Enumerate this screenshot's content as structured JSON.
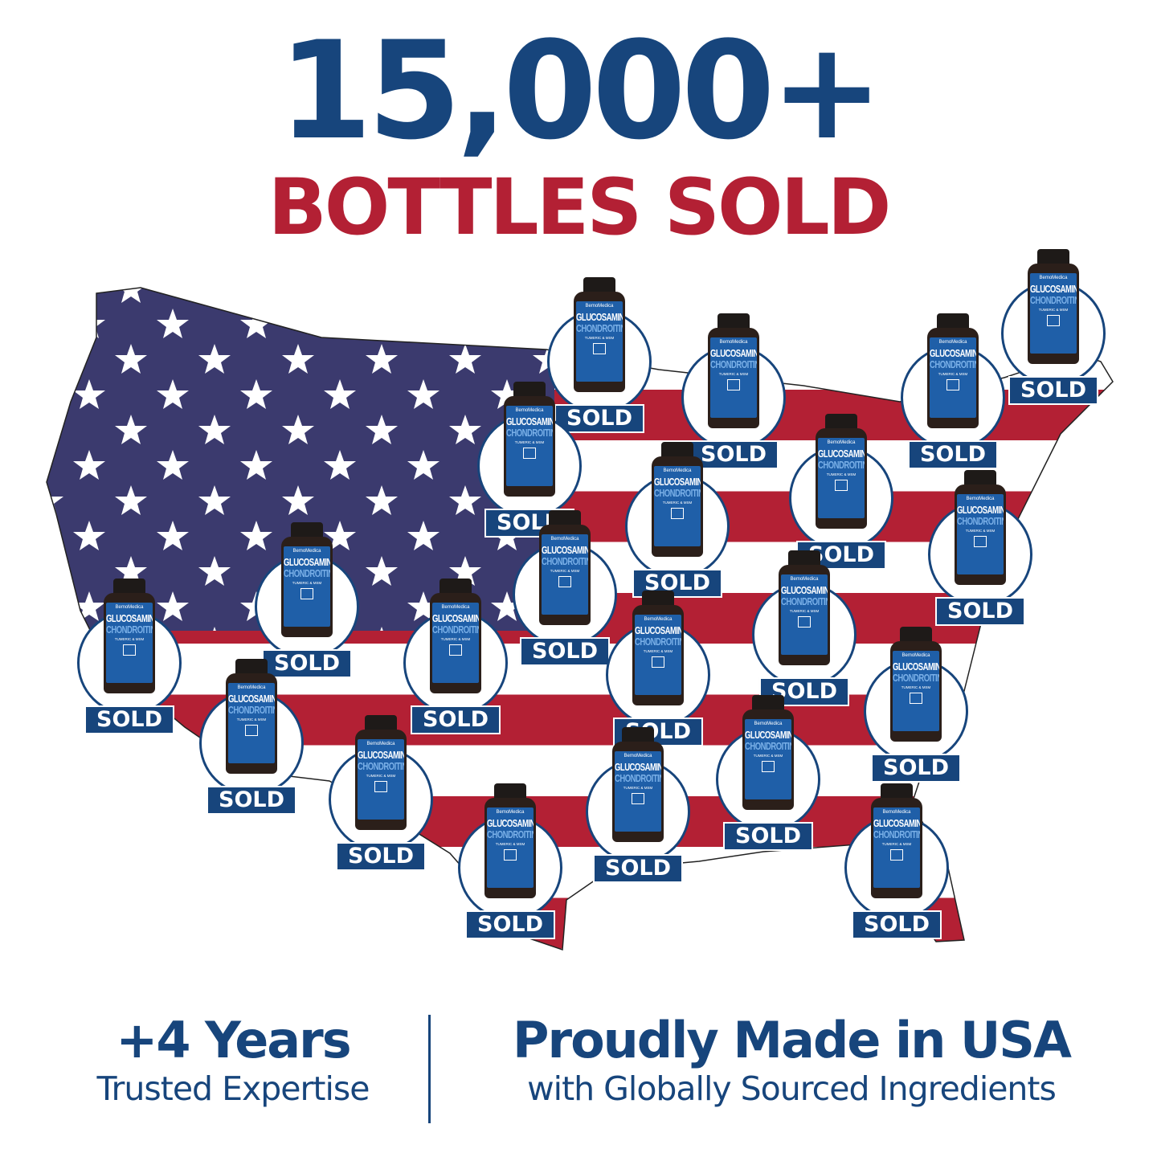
{
  "headline": {
    "count": "15,000+",
    "subtitle": "BOTTLES SOLD"
  },
  "colors": {
    "navy": "#17457c",
    "red": "#b32034",
    "flag_blue": "#3b3a6e",
    "white": "#ffffff"
  },
  "product": {
    "brand": "BemoMedica",
    "line1": "GLUCOSAMINE",
    "line2": "CHONDROITIN",
    "line3": "TUMERIC & MSM",
    "badge_label": "SOLD",
    "badge_count": 21
  },
  "map": {
    "description_icon": "usa-flag-map"
  },
  "footer": {
    "left": {
      "title": "+4 Years",
      "subtitle": "Trusted Expertise"
    },
    "right": {
      "title": "Proudly Made in USA",
      "subtitle": "with Globally Sourced Ingredients"
    }
  }
}
